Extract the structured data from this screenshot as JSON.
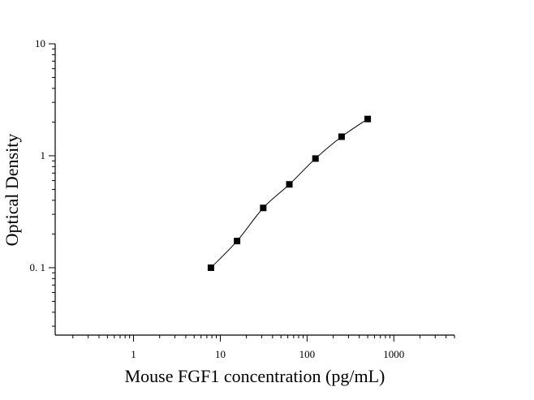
{
  "chart_data": {
    "type": "scatter",
    "xlabel": "Mouse FGF1 concentration (pg/mL)",
    "ylabel": "Optical Density",
    "x": [
      7.8,
      15.6,
      31.25,
      62.5,
      125,
      250,
      500
    ],
    "series": [
      {
        "color": "#000000",
        "values": [
          0.1,
          0.173,
          0.342,
          0.555,
          0.944,
          1.48,
          2.13
        ]
      }
    ],
    "line": true,
    "xscale": "log",
    "yscale": "log",
    "xlim": [
      0.125,
      5000
    ],
    "ylim": [
      0.025,
      10
    ],
    "xticks": [
      1,
      10,
      100,
      1000
    ],
    "yticks": [
      {
        "value": 0.1,
        "label": "0. 1"
      },
      1,
      10
    ],
    "minor_ticks": true
  }
}
